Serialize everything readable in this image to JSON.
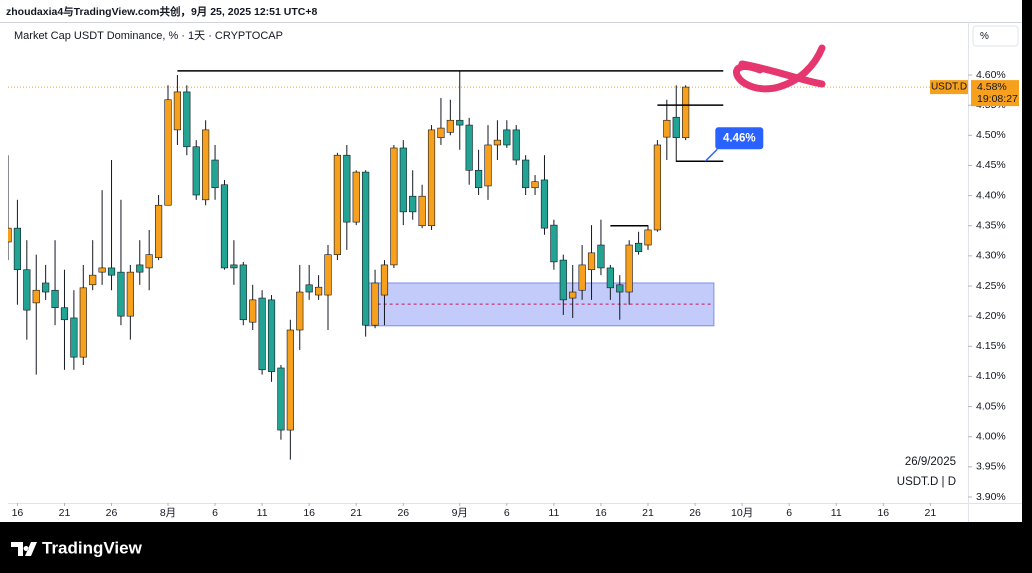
{
  "header": {
    "credit": "zhoudaxia4与TradingView.com共创，9月 25, 2025 12:51 UTC+8"
  },
  "footer": {
    "brand": "TradingView"
  },
  "chart_data": {
    "type": "candlestick",
    "title": "Market Cap USDT Dominance, % · 1天 · CRYPTOCAP",
    "unit_button": "%",
    "date_label": "26/9/2025",
    "symbol_label": "USDT.D | D",
    "symbol": "USDT.D",
    "countdown": "19:08:27",
    "last_price": {
      "value": 4.58,
      "label": "4.58%"
    },
    "up_color": "#f7a01d",
    "down_color": "#22a393",
    "grid": false,
    "x": [
      "07-15",
      "07-16",
      "07-17",
      "07-18",
      "07-19",
      "07-20",
      "07-21",
      "07-22",
      "07-23",
      "07-24",
      "07-25",
      "07-26",
      "07-27",
      "07-28",
      "07-29",
      "07-30",
      "07-31",
      "08-01",
      "08-02",
      "08-03",
      "08-04",
      "08-05",
      "08-06",
      "08-07",
      "08-08",
      "08-09",
      "08-10",
      "08-11",
      "08-12",
      "08-13",
      "08-14",
      "08-15",
      "08-16",
      "08-17",
      "08-18",
      "08-19",
      "08-20",
      "08-21",
      "08-22",
      "08-23",
      "08-24",
      "08-25",
      "08-26",
      "08-27",
      "08-28",
      "08-29",
      "08-30",
      "08-31",
      "09-01",
      "09-02",
      "09-03",
      "09-04",
      "09-05",
      "09-06",
      "09-07",
      "09-08",
      "09-09",
      "09-10",
      "09-11",
      "09-12",
      "09-13",
      "09-14",
      "09-15",
      "09-16",
      "09-17",
      "09-18",
      "09-19",
      "09-20",
      "09-21",
      "09-22",
      "09-23",
      "09-24",
      "09-25"
    ],
    "open": [
      4.323,
      4.346,
      4.277,
      4.222,
      4.255,
      4.243,
      4.214,
      4.197,
      4.132,
      4.252,
      4.273,
      4.28,
      4.273,
      4.2,
      4.285,
      4.28,
      4.297,
      4.384,
      4.509,
      4.572,
      4.481,
      4.393,
      4.459,
      4.418,
      4.285,
      4.285,
      4.19,
      4.23,
      4.227,
      4.114,
      4.011,
      4.177,
      4.252,
      4.235,
      4.235,
      4.302,
      4.467,
      4.356,
      4.439,
      4.185,
      4.235,
      4.285,
      4.479,
      4.399,
      4.35,
      4.35,
      4.496,
      4.505,
      4.525,
      4.517,
      4.442,
      4.416,
      4.484,
      4.509,
      4.509,
      4.459,
      4.413,
      4.426,
      4.351,
      4.293,
      4.23,
      4.243,
      4.277,
      4.318,
      4.28,
      4.252,
      4.24,
      4.321,
      4.318,
      4.343,
      4.497,
      4.53,
      4.496
    ],
    "high": [
      4.467,
      4.393,
      4.326,
      4.302,
      4.285,
      4.326,
      4.277,
      4.243,
      4.285,
      4.326,
      4.409,
      4.459,
      4.393,
      4.285,
      4.326,
      4.343,
      4.401,
      4.583,
      4.6,
      4.583,
      4.492,
      4.525,
      4.484,
      4.426,
      4.326,
      4.29,
      4.252,
      4.243,
      4.235,
      4.119,
      4.194,
      4.285,
      4.285,
      4.268,
      4.318,
      4.471,
      4.484,
      4.442,
      4.442,
      4.277,
      4.293,
      4.484,
      4.492,
      4.442,
      4.418,
      4.517,
      4.562,
      4.559,
      4.607,
      4.529,
      4.476,
      4.517,
      4.525,
      4.525,
      4.517,
      4.467,
      4.434,
      4.467,
      4.36,
      4.302,
      4.285,
      4.318,
      4.351,
      4.36,
      4.285,
      4.268,
      4.326,
      4.34,
      4.351,
      4.492,
      4.559,
      4.583,
      4.583
    ],
    "low": [
      4.293,
      4.219,
      4.161,
      4.103,
      4.227,
      4.185,
      4.111,
      4.111,
      4.119,
      4.243,
      4.252,
      4.243,
      4.185,
      4.161,
      4.252,
      4.243,
      4.293,
      4.384,
      4.484,
      4.467,
      4.393,
      4.384,
      4.393,
      4.277,
      4.252,
      4.185,
      4.177,
      4.103,
      4.091,
      3.995,
      3.962,
      4.144,
      4.227,
      4.227,
      4.177,
      4.293,
      4.31,
      4.351,
      4.166,
      4.18,
      4.185,
      4.28,
      4.351,
      4.36,
      4.346,
      4.343,
      4.484,
      4.5,
      4.476,
      4.418,
      4.401,
      4.393,
      4.459,
      4.479,
      4.451,
      4.401,
      4.401,
      4.335,
      4.277,
      4.202,
      4.197,
      4.227,
      4.227,
      4.268,
      4.227,
      4.194,
      4.219,
      4.302,
      4.31,
      4.34,
      4.459,
      4.456,
      4.492
    ],
    "close": [
      4.346,
      4.277,
      4.21,
      4.243,
      4.24,
      4.214,
      4.194,
      4.132,
      4.247,
      4.268,
      4.28,
      4.268,
      4.2,
      4.273,
      4.273,
      4.302,
      4.384,
      4.559,
      4.572,
      4.481,
      4.401,
      4.509,
      4.413,
      4.28,
      4.28,
      4.194,
      4.227,
      4.111,
      4.108,
      4.011,
      4.177,
      4.24,
      4.24,
      4.248,
      4.302,
      4.467,
      4.356,
      4.439,
      4.185,
      4.255,
      4.285,
      4.479,
      4.373,
      4.373,
      4.399,
      4.509,
      4.512,
      4.525,
      4.517,
      4.442,
      4.413,
      4.484,
      4.492,
      4.484,
      4.459,
      4.413,
      4.423,
      4.346,
      4.29,
      4.227,
      4.24,
      4.285,
      4.305,
      4.28,
      4.247,
      4.24,
      4.318,
      4.307,
      4.343,
      4.484,
      4.525,
      4.496,
      4.58
    ],
    "xlim": [
      "07-15",
      "10-25"
    ],
    "xticks": [
      {
        "value": "07-16",
        "label": "16"
      },
      {
        "value": "07-21",
        "label": "21"
      },
      {
        "value": "07-26",
        "label": "26"
      },
      {
        "value": "08-01",
        "label": "8月"
      },
      {
        "value": "08-06",
        "label": "6"
      },
      {
        "value": "08-11",
        "label": "11"
      },
      {
        "value": "08-16",
        "label": "16"
      },
      {
        "value": "08-21",
        "label": "21"
      },
      {
        "value": "08-26",
        "label": "26"
      },
      {
        "value": "09-01",
        "label": "9月"
      },
      {
        "value": "09-06",
        "label": "6"
      },
      {
        "value": "09-11",
        "label": "11"
      },
      {
        "value": "09-16",
        "label": "16"
      },
      {
        "value": "09-21",
        "label": "21"
      },
      {
        "value": "09-26",
        "label": "26"
      },
      {
        "value": "10-01",
        "label": "10月"
      },
      {
        "value": "10-06",
        "label": "6"
      },
      {
        "value": "10-11",
        "label": "11"
      },
      {
        "value": "10-16",
        "label": "16"
      },
      {
        "value": "10-21",
        "label": "21"
      }
    ],
    "ylim": [
      3.89,
      4.688
    ],
    "yticks": [
      {
        "value": 3.9,
        "label": "3.90%"
      },
      {
        "value": 3.95,
        "label": "3.95%"
      },
      {
        "value": 4.0,
        "label": "4.00%"
      },
      {
        "value": 4.05,
        "label": "4.05%"
      },
      {
        "value": 4.1,
        "label": "4.10%"
      },
      {
        "value": 4.15,
        "label": "4.15%"
      },
      {
        "value": 4.2,
        "label": "4.20%"
      },
      {
        "value": 4.25,
        "label": "4.25%"
      },
      {
        "value": 4.3,
        "label": "4.30%"
      },
      {
        "value": 4.35,
        "label": "4.35%"
      },
      {
        "value": 4.4,
        "label": "4.40%"
      },
      {
        "value": 4.45,
        "label": "4.45%"
      },
      {
        "value": 4.5,
        "label": "4.50%"
      },
      {
        "value": 4.55,
        "label": "4.55%"
      },
      {
        "value": 4.6,
        "label": "4.60%"
      }
    ],
    "hlines": [
      {
        "y": 4.607,
        "from": "08-02",
        "to": "09-29"
      },
      {
        "y": 4.55,
        "from": "09-22",
        "to": "09-29"
      },
      {
        "y": 4.457,
        "from": "09-24",
        "to": "09-29"
      },
      {
        "y": 4.35,
        "from": "09-17",
        "to": "09-21"
      }
    ],
    "zone": {
      "top": 4.255,
      "bottom": 4.184,
      "mid": 4.22,
      "from": "08-22",
      "to": "09-28"
    },
    "callout": {
      "label": "4.46%"
    }
  }
}
